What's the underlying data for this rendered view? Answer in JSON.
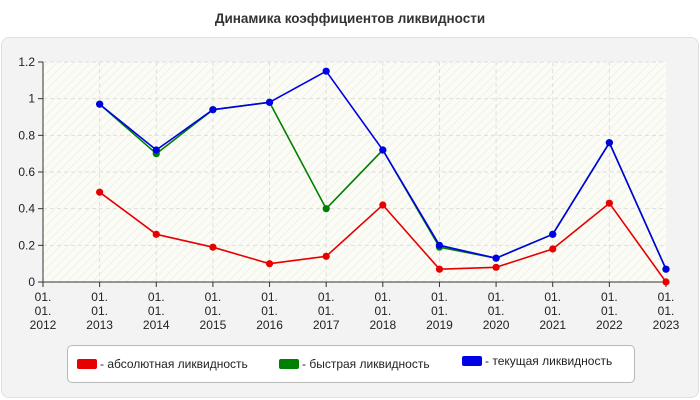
{
  "chart_data": {
    "type": "line",
    "title": "Динамика коэффициентов ликвидности",
    "xlabel": "",
    "ylabel": "",
    "categories": [
      "01.\n01.\n2012",
      "01.\n01.\n2013",
      "01.\n01.\n2014",
      "01.\n01.\n2015",
      "01.\n01.\n2016",
      "01.\n01.\n2017",
      "01.\n01.\n2018",
      "01.\n01.\n2019",
      "01.\n01.\n2020",
      "01.\n01.\n2021",
      "01.\n01.\n2022",
      "01.\n01.\n2023"
    ],
    "ylim": [
      0,
      1.2
    ],
    "yticks": [
      "0",
      "0.2",
      "0.4",
      "0.6",
      "0.8",
      "1",
      "1.2"
    ],
    "grid": true,
    "legend_position": "bottom",
    "series": [
      {
        "name": "- абсолютная ликвидность",
        "color": "#e60000",
        "values": [
          null,
          0.49,
          0.26,
          0.19,
          0.1,
          0.14,
          0.42,
          0.07,
          0.08,
          0.18,
          0.43,
          0.0
        ]
      },
      {
        "name": "- быстрая ликвидность",
        "color": "#008000",
        "values": [
          null,
          0.97,
          0.7,
          0.94,
          0.98,
          0.4,
          0.72,
          0.19,
          0.13,
          0.26,
          0.76,
          0.07
        ]
      },
      {
        "name": "- текущая ликвидность",
        "color": "#0000e6",
        "values": [
          null,
          0.97,
          0.72,
          0.94,
          0.98,
          1.15,
          0.72,
          0.2,
          0.13,
          0.26,
          0.76,
          0.07
        ]
      }
    ]
  }
}
